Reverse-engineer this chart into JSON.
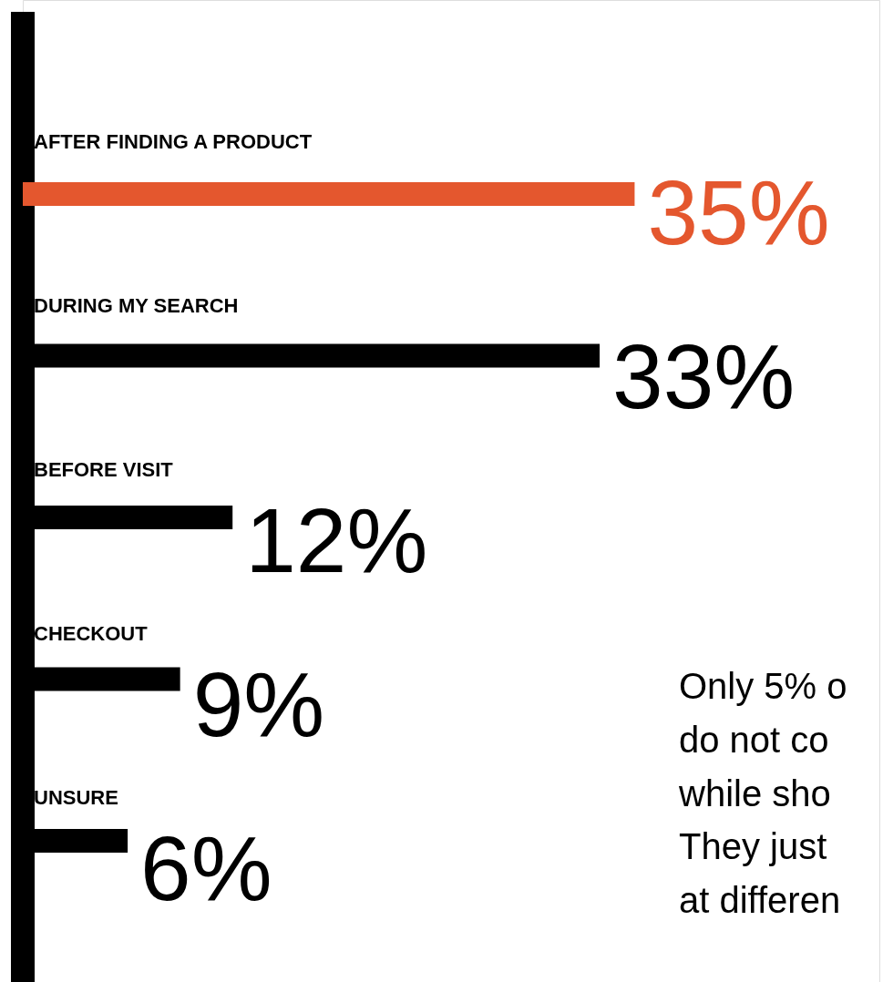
{
  "chart_data": {
    "type": "bar",
    "orientation": "horizontal",
    "categories": [
      "AFTER FINDING A PRODUCT",
      "DURING MY SEARCH",
      "BEFORE VISIT",
      "CHECKOUT",
      "UNSURE"
    ],
    "values": [
      35,
      33,
      12,
      9,
      6
    ],
    "value_labels": [
      "35%",
      "33%",
      "12%",
      "9%",
      "6%"
    ],
    "colors": [
      "#e4572e",
      "#000000",
      "#000000",
      "#000000",
      "#000000"
    ],
    "xlim": [
      0,
      49
    ],
    "annotations": [
      "Only 5% o",
      "do not co",
      "while sho",
      "They just",
      "at differen"
    ]
  }
}
